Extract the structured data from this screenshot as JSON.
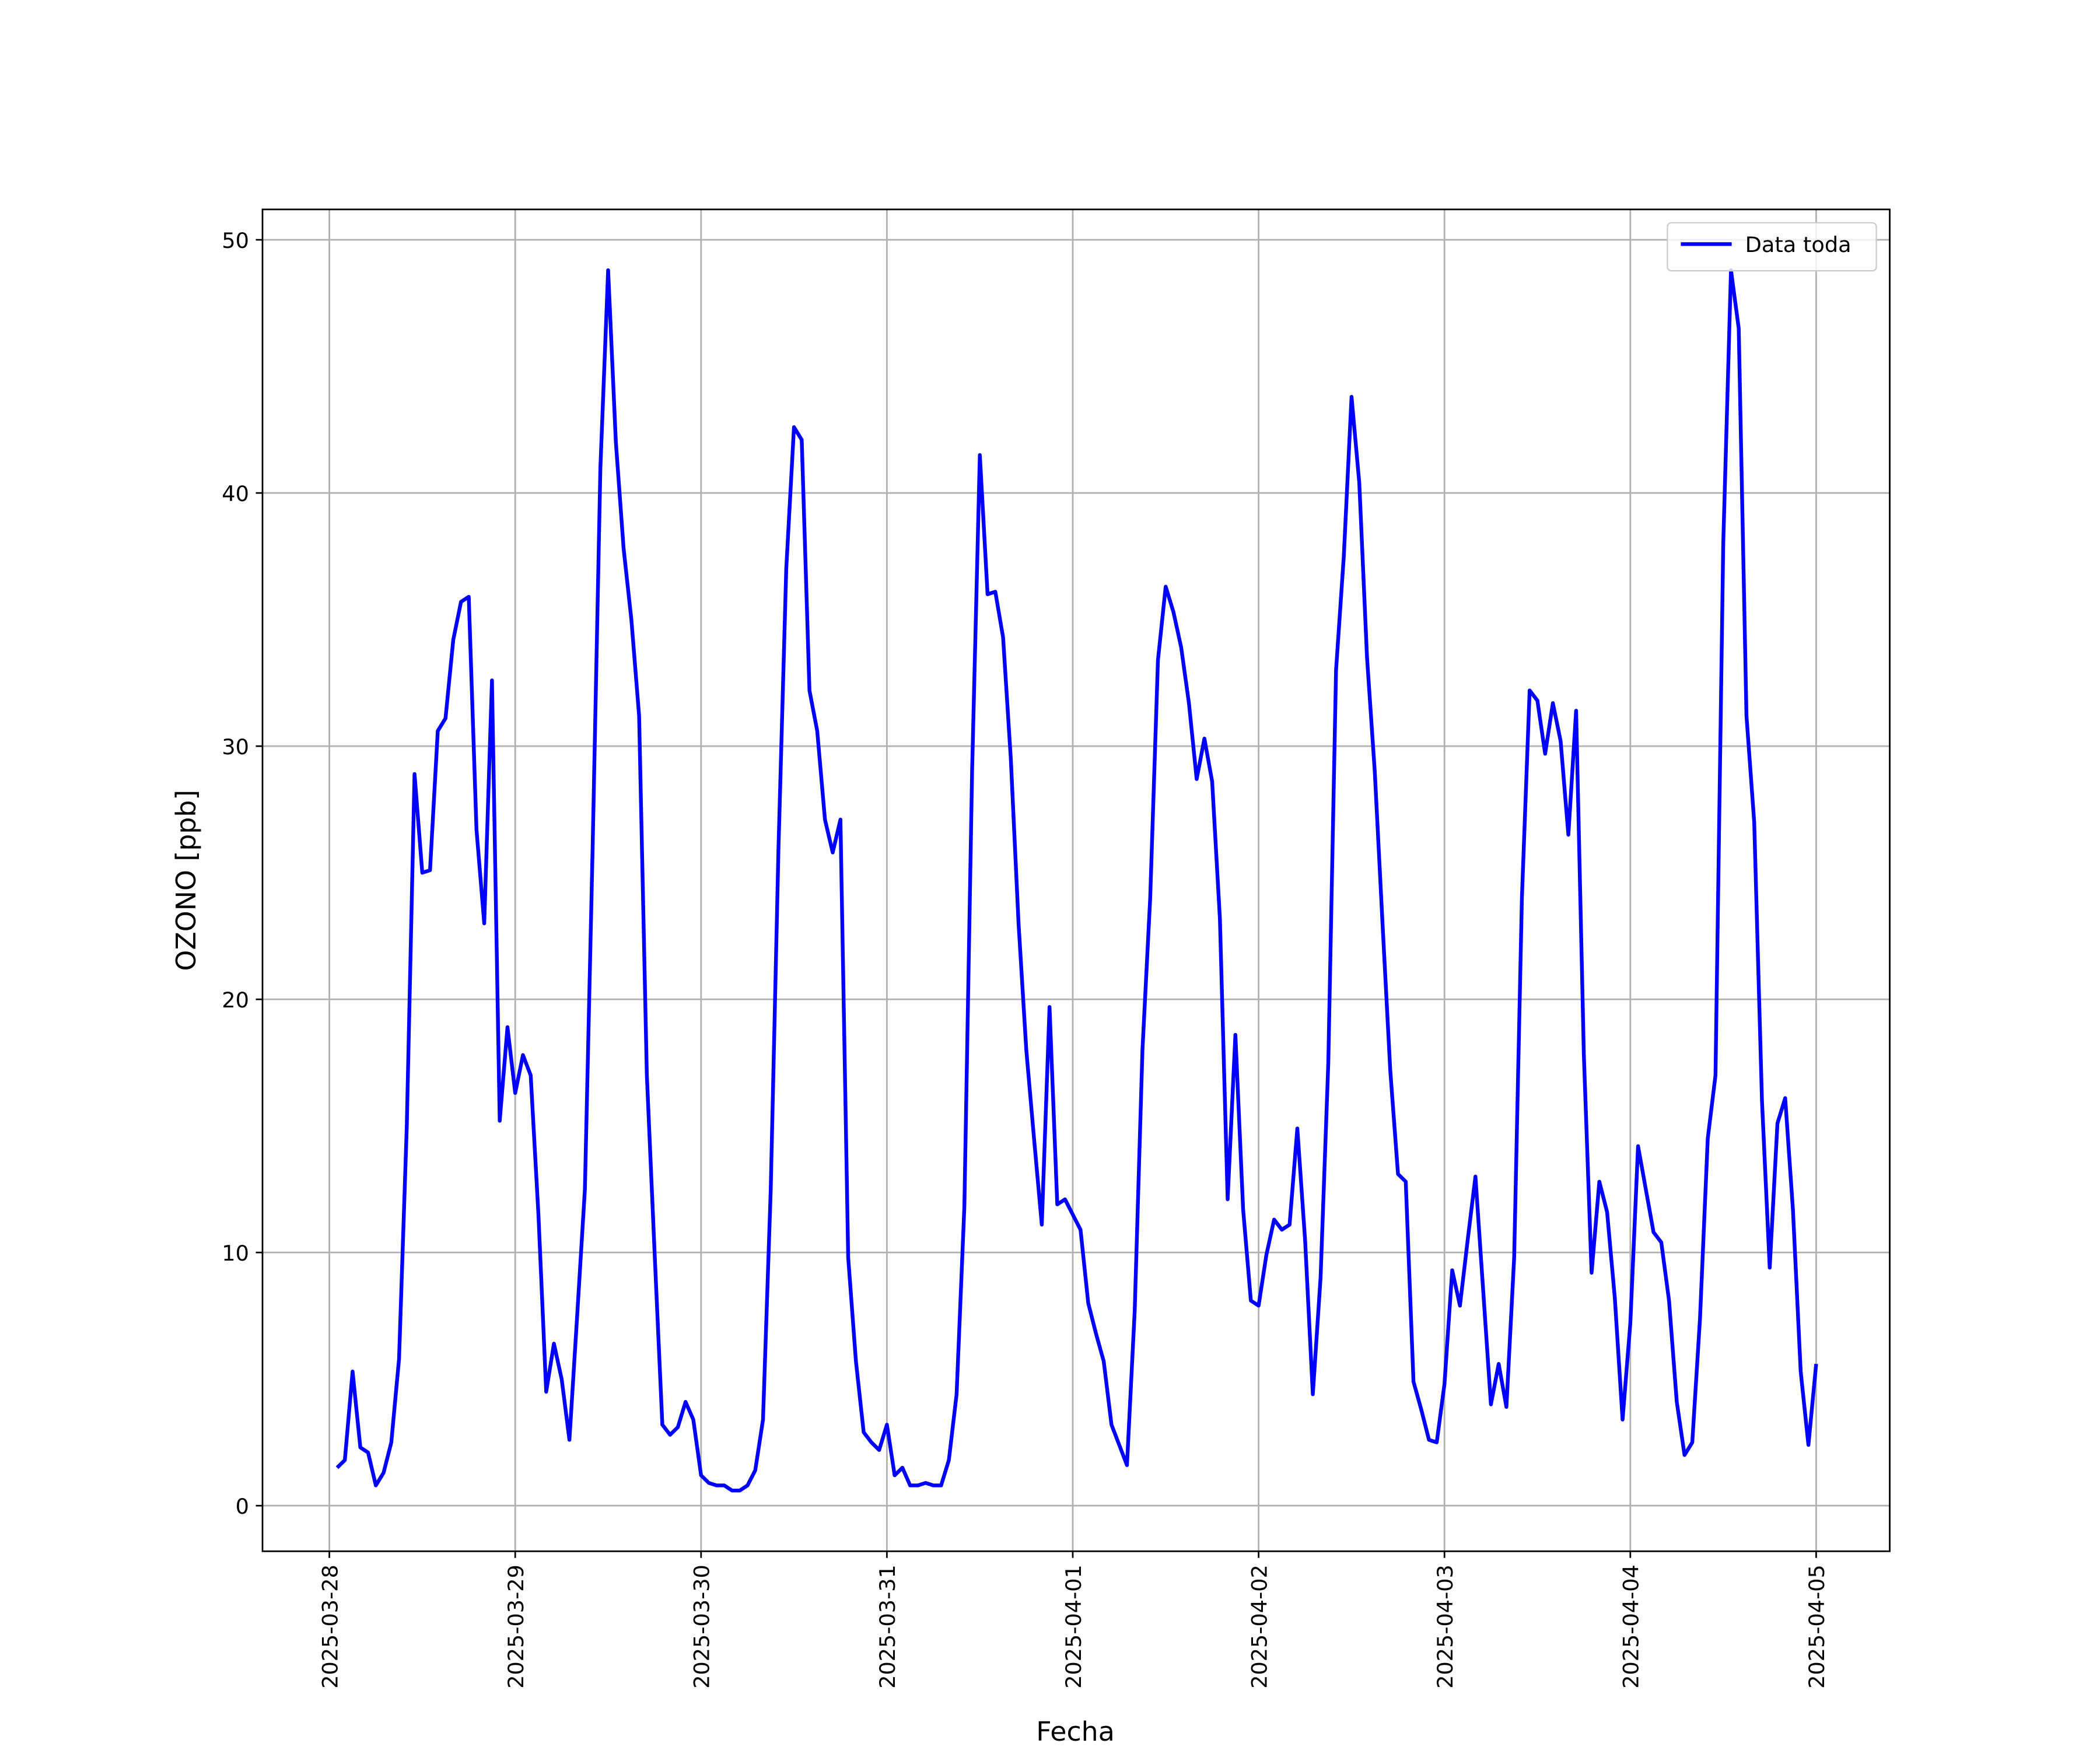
{
  "chart_data": {
    "type": "line",
    "x_label": "Fecha",
    "y_label": "OZONO [ppb]",
    "xlim": [
      "2025-03-27 15:22",
      "2025-04-05 09:30"
    ],
    "xticks": [
      "2025-03-28",
      "2025-03-29",
      "2025-03-30",
      "2025-03-31",
      "2025-04-01",
      "2025-04-02",
      "2025-04-03",
      "2025-04-04",
      "2025-04-05"
    ],
    "ylim": [
      -1.8,
      51.2
    ],
    "yticks": [
      0,
      10,
      20,
      30,
      40,
      50
    ],
    "grid": true,
    "legend": "upper right",
    "x": [
      "2025-03-28 01:00",
      "2025-03-28 02:00",
      "2025-03-28 03:00",
      "2025-03-28 04:00",
      "2025-03-28 05:00",
      "2025-03-28 06:00",
      "2025-03-28 07:00",
      "2025-03-28 08:00",
      "2025-03-28 09:00",
      "2025-03-28 10:00",
      "2025-03-28 11:00",
      "2025-03-28 12:00",
      "2025-03-28 13:00",
      "2025-03-28 14:00",
      "2025-03-28 15:00",
      "2025-03-28 16:00",
      "2025-03-28 17:00",
      "2025-03-28 18:00",
      "2025-03-28 19:00",
      "2025-03-28 20:00",
      "2025-03-28 21:00",
      "2025-03-28 22:00",
      "2025-03-28 23:00",
      "2025-03-29 00:00",
      "2025-03-29 01:00",
      "2025-03-29 02:00",
      "2025-03-29 03:00",
      "2025-03-29 04:00",
      "2025-03-29 05:00",
      "2025-03-29 06:00",
      "2025-03-29 07:00",
      "2025-03-29 08:00",
      "2025-03-29 09:00",
      "2025-03-29 10:00",
      "2025-03-29 11:00",
      "2025-03-29 12:00",
      "2025-03-29 13:00",
      "2025-03-29 14:00",
      "2025-03-29 15:00",
      "2025-03-29 16:00",
      "2025-03-29 17:00",
      "2025-03-29 18:00",
      "2025-03-29 19:00",
      "2025-03-29 20:00",
      "2025-03-29 21:00",
      "2025-03-29 22:00",
      "2025-03-29 23:00",
      "2025-03-30 00:00",
      "2025-03-30 01:00",
      "2025-03-30 02:00",
      "2025-03-30 03:00",
      "2025-03-30 04:00",
      "2025-03-30 05:00",
      "2025-03-30 06:00",
      "2025-03-30 07:00",
      "2025-03-30 08:00",
      "2025-03-30 09:00",
      "2025-03-30 10:00",
      "2025-03-30 11:00",
      "2025-03-30 12:00",
      "2025-03-30 13:00",
      "2025-03-30 14:00",
      "2025-03-30 15:00",
      "2025-03-30 16:00",
      "2025-03-30 17:00",
      "2025-03-30 18:00",
      "2025-03-30 19:00",
      "2025-03-30 20:00",
      "2025-03-30 21:00",
      "2025-03-30 22:00",
      "2025-03-30 23:00",
      "2025-03-31 00:00",
      "2025-03-31 01:00",
      "2025-03-31 02:00",
      "2025-03-31 03:00",
      "2025-03-31 04:00",
      "2025-03-31 05:00",
      "2025-03-31 06:00",
      "2025-03-31 07:00",
      "2025-03-31 08:00",
      "2025-03-31 09:00",
      "2025-03-31 10:00",
      "2025-03-31 11:00",
      "2025-03-31 12:00",
      "2025-03-31 13:00",
      "2025-03-31 14:00",
      "2025-03-31 15:00",
      "2025-03-31 16:00",
      "2025-03-31 17:00",
      "2025-03-31 18:00",
      "2025-03-31 19:00",
      "2025-03-31 20:00",
      "2025-03-31 21:00",
      "2025-03-31 22:00",
      "2025-03-31 23:00",
      "2025-04-01 00:00",
      "2025-04-01 01:00",
      "2025-04-01 02:00",
      "2025-04-01 03:00",
      "2025-04-01 04:00",
      "2025-04-01 05:00",
      "2025-04-01 06:00",
      "2025-04-01 07:00",
      "2025-04-01 08:00",
      "2025-04-01 09:00",
      "2025-04-01 10:00",
      "2025-04-01 11:00",
      "2025-04-01 12:00",
      "2025-04-01 13:00",
      "2025-04-01 14:00",
      "2025-04-01 15:00",
      "2025-04-01 16:00",
      "2025-04-01 17:00",
      "2025-04-01 18:00",
      "2025-04-01 19:00",
      "2025-04-01 20:00",
      "2025-04-01 21:00",
      "2025-04-01 22:00",
      "2025-04-01 23:00",
      "2025-04-02 00:00",
      "2025-04-02 01:00",
      "2025-04-02 02:00",
      "2025-04-02 03:00",
      "2025-04-02 04:00",
      "2025-04-02 05:00",
      "2025-04-02 06:00",
      "2025-04-02 07:00",
      "2025-04-02 08:00",
      "2025-04-02 09:00",
      "2025-04-02 10:00",
      "2025-04-02 11:00",
      "2025-04-02 12:00",
      "2025-04-02 13:00",
      "2025-04-02 14:00",
      "2025-04-02 15:00",
      "2025-04-02 16:00",
      "2025-04-02 17:00",
      "2025-04-02 18:00",
      "2025-04-02 19:00",
      "2025-04-02 20:00",
      "2025-04-02 21:00",
      "2025-04-02 22:00",
      "2025-04-02 23:00",
      "2025-04-03 00:00",
      "2025-04-03 01:00",
      "2025-04-03 02:00",
      "2025-04-03 03:00",
      "2025-04-03 04:00",
      "2025-04-03 05:00",
      "2025-04-03 06:00",
      "2025-04-03 07:00",
      "2025-04-03 08:00",
      "2025-04-03 09:00",
      "2025-04-03 10:00",
      "2025-04-03 11:00",
      "2025-04-03 12:00",
      "2025-04-03 13:00",
      "2025-04-03 14:00",
      "2025-04-03 15:00",
      "2025-04-03 16:00",
      "2025-04-03 17:00",
      "2025-04-03 18:00",
      "2025-04-03 19:00",
      "2025-04-03 20:00",
      "2025-04-03 21:00",
      "2025-04-03 22:00",
      "2025-04-03 23:00",
      "2025-04-04 00:00",
      "2025-04-04 01:00",
      "2025-04-04 02:00",
      "2025-04-04 03:00",
      "2025-04-04 04:00",
      "2025-04-04 05:00",
      "2025-04-04 06:00",
      "2025-04-04 07:00",
      "2025-04-04 08:00",
      "2025-04-04 09:00",
      "2025-04-04 10:00",
      "2025-04-04 11:00",
      "2025-04-04 12:00",
      "2025-04-04 13:00",
      "2025-04-04 14:00",
      "2025-04-04 15:00",
      "2025-04-04 16:00",
      "2025-04-04 17:00",
      "2025-04-04 18:00",
      "2025-04-04 19:00",
      "2025-04-04 20:00",
      "2025-04-04 21:00",
      "2025-04-04 22:00",
      "2025-04-04 23:00",
      "2025-04-05 00:00"
    ],
    "series": [
      {
        "name": "Data toda",
        "color": "#0000ff",
        "values": [
          1.5,
          1.8,
          5.3,
          2.3,
          2.1,
          0.8,
          1.3,
          2.5,
          5.8,
          15,
          28.9,
          25,
          25.1,
          30.6,
          31.1,
          34.2,
          35.7,
          35.9,
          26.7,
          23,
          32.6,
          15.2,
          18.9,
          16.3,
          17.8,
          17,
          11.5,
          4.5,
          6.4,
          5,
          2.6,
          7.5,
          12.5,
          26,
          41,
          48.8,
          42,
          37.8,
          35,
          31.2,
          17,
          10,
          3.2,
          2.8,
          3.1,
          4.1,
          3.4,
          1.2,
          0.9,
          0.8,
          0.8,
          0.6,
          0.6,
          0.8,
          1.4,
          3.4,
          12.5,
          26,
          37,
          42.6,
          42.1,
          32.2,
          30.6,
          27.1,
          25.8,
          27.1,
          9.8,
          5.7,
          2.9,
          2.5,
          2.2,
          3.2,
          1.2,
          1.5,
          0.8,
          0.8,
          0.9,
          0.8,
          0.8,
          1.8,
          4.4,
          11.8,
          29,
          41.5,
          36,
          36.1,
          34.3,
          29.5,
          23,
          18,
          14.5,
          11.1,
          19.7,
          11.9,
          12.1,
          11.5,
          10.9,
          8,
          6.8,
          5.7,
          3.2,
          2.4,
          1.6,
          7.7,
          18,
          24,
          33.4,
          36.3,
          35.3,
          33.9,
          31.7,
          28.7,
          30.3,
          28.6,
          23.2,
          12.1,
          18.6,
          11.7,
          8.1,
          7.9,
          9.9,
          11.3,
          10.9,
          11.1,
          14.9,
          10.5,
          4.4,
          9,
          17.5,
          33,
          37.5,
          43.8,
          40.4,
          33.5,
          29,
          23,
          17.2,
          13.1,
          12.8,
          4.9,
          3.8,
          2.6,
          2.5,
          4.8,
          9.3,
          7.9,
          10.5,
          13,
          8.5,
          4,
          5.6,
          3.9,
          9.8,
          24,
          32.2,
          31.8,
          29.7,
          31.7,
          30.2,
          26.5,
          31.4,
          17.8,
          9.2,
          12.8,
          11.6,
          8.2,
          3.4,
          7.2,
          14.2,
          12.5,
          10.8,
          10.4,
          8.1,
          4.1,
          2,
          2.5,
          7.4,
          14.5,
          17,
          38,
          48.8,
          46.5,
          31.2,
          27,
          16,
          9.4,
          15.1,
          16.1,
          11.7,
          5.3,
          2.4,
          5.6
        ]
      }
    ]
  }
}
